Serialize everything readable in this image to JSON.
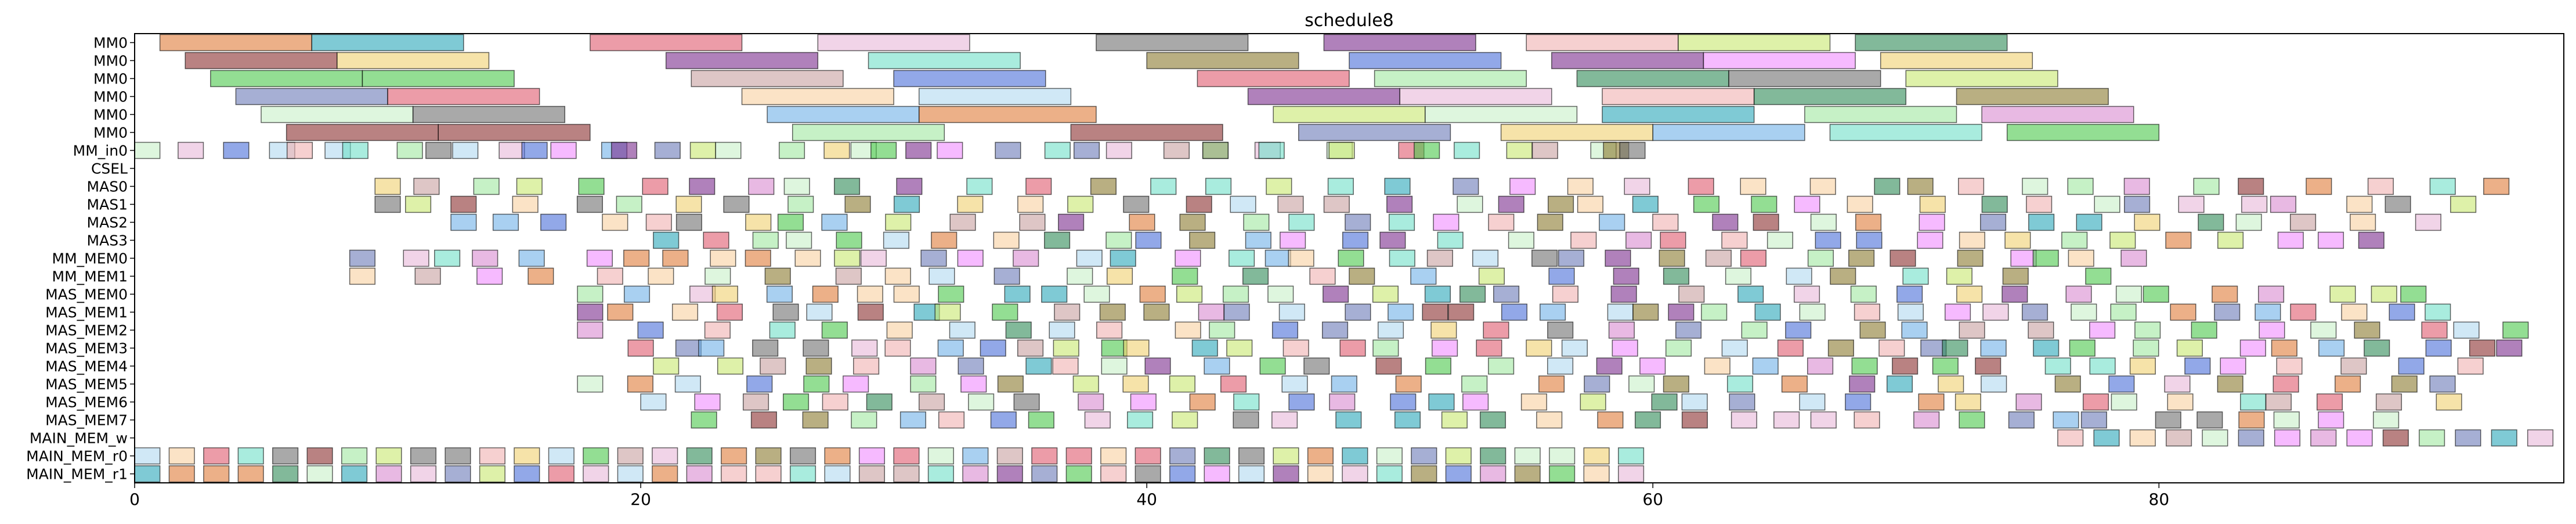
{
  "chart_data": {
    "type": "bar",
    "subtype": "gantt",
    "title": "schedule8",
    "xlabel": "",
    "ylabel": "",
    "xlim": [
      0,
      96
    ],
    "x_ticks": [
      0,
      20,
      40,
      60,
      80
    ],
    "grid": false,
    "legend": "none",
    "rows": [
      "MM0",
      "MM0",
      "MM0",
      "MM0",
      "MM0",
      "MM0",
      "MM_in0",
      "CSEL",
      "MAS0",
      "MAS1",
      "MAS2",
      "MAS3",
      "MM_MEM0",
      "MM_MEM1",
      "MAS_MEM0",
      "MAS_MEM1",
      "MAS_MEM2",
      "MAS_MEM3",
      "MAS_MEM4",
      "MAS_MEM5",
      "MAS_MEM6",
      "MAS_MEM7",
      "MAIN_MEM_w",
      "MAIN_MEM_r0",
      "MAIN_MEM_r1"
    ],
    "palette": [
      "#e07b39",
      "#2aa7b9",
      "#f0d070",
      "#e05a6e",
      "#7b2d8e",
      "#6fe0c8",
      "#e8b8d8",
      "#707070",
      "#8b7a2e",
      "#4a6ed8",
      "#f08cff",
      "#4bc84b",
      "#c8a0a0",
      "#2e8b57",
      "#a0e8a0",
      "#6a7ab8",
      "#f0b0b0",
      "#b0d8f0",
      "#c8e870",
      "#8b2e2e",
      "#f8d0a0",
      "#70b0e8",
      "#c8f0c8",
      "#d88bd0"
    ],
    "tasks": [
      {
        "row": 0,
        "start": 1,
        "end": 7,
        "c": 0
      },
      {
        "row": 0,
        "start": 7,
        "end": 13,
        "c": 1
      },
      {
        "row": 0,
        "start": 18,
        "end": 24,
        "c": 3
      },
      {
        "row": 0,
        "start": 27,
        "end": 33,
        "c": 6
      },
      {
        "row": 0,
        "start": 38,
        "end": 44,
        "c": 7
      },
      {
        "row": 0,
        "start": 47,
        "end": 53,
        "c": 4
      },
      {
        "row": 0,
        "start": 55,
        "end": 61,
        "c": 16
      },
      {
        "row": 0,
        "start": 61,
        "end": 67,
        "c": 18
      },
      {
        "row": 0,
        "start": 68,
        "end": 74,
        "c": 13
      },
      {
        "row": 1,
        "start": 2,
        "end": 8,
        "c": 19
      },
      {
        "row": 1,
        "start": 8,
        "end": 14,
        "c": 2
      },
      {
        "row": 1,
        "start": 21,
        "end": 27,
        "c": 4
      },
      {
        "row": 1,
        "start": 29,
        "end": 35,
        "c": 5
      },
      {
        "row": 1,
        "start": 40,
        "end": 46,
        "c": 8
      },
      {
        "row": 1,
        "start": 48,
        "end": 54,
        "c": 9
      },
      {
        "row": 1,
        "start": 56,
        "end": 62,
        "c": 4
      },
      {
        "row": 1,
        "start": 62,
        "end": 68,
        "c": 10
      },
      {
        "row": 1,
        "start": 69,
        "end": 75,
        "c": 2
      },
      {
        "row": 2,
        "start": 3,
        "end": 9,
        "c": 11
      },
      {
        "row": 2,
        "start": 9,
        "end": 15,
        "c": 11
      },
      {
        "row": 2,
        "start": 22,
        "end": 28,
        "c": 12
      },
      {
        "row": 2,
        "start": 30,
        "end": 36,
        "c": 9
      },
      {
        "row": 2,
        "start": 42,
        "end": 48,
        "c": 3
      },
      {
        "row": 2,
        "start": 49,
        "end": 55,
        "c": 14
      },
      {
        "row": 2,
        "start": 57,
        "end": 63,
        "c": 13
      },
      {
        "row": 2,
        "start": 63,
        "end": 69,
        "c": 7
      },
      {
        "row": 2,
        "start": 70,
        "end": 76,
        "c": 18
      },
      {
        "row": 3,
        "start": 4,
        "end": 10,
        "c": 15
      },
      {
        "row": 3,
        "start": 10,
        "end": 16,
        "c": 3
      },
      {
        "row": 3,
        "start": 24,
        "end": 30,
        "c": 20
      },
      {
        "row": 3,
        "start": 31,
        "end": 37,
        "c": 17
      },
      {
        "row": 3,
        "start": 44,
        "end": 50,
        "c": 4
      },
      {
        "row": 3,
        "start": 50,
        "end": 56,
        "c": 6
      },
      {
        "row": 3,
        "start": 58,
        "end": 64,
        "c": 16
      },
      {
        "row": 3,
        "start": 64,
        "end": 70,
        "c": 13
      },
      {
        "row": 3,
        "start": 72,
        "end": 78,
        "c": 8
      },
      {
        "row": 4,
        "start": 5,
        "end": 11,
        "c": 22
      },
      {
        "row": 4,
        "start": 11,
        "end": 17,
        "c": 7
      },
      {
        "row": 4,
        "start": 25,
        "end": 31,
        "c": 21
      },
      {
        "row": 4,
        "start": 31,
        "end": 38,
        "c": 0
      },
      {
        "row": 4,
        "start": 45,
        "end": 51,
        "c": 18
      },
      {
        "row": 4,
        "start": 51,
        "end": 57,
        "c": 22
      },
      {
        "row": 4,
        "start": 58,
        "end": 64,
        "c": 1
      },
      {
        "row": 4,
        "start": 66,
        "end": 72,
        "c": 14
      },
      {
        "row": 4,
        "start": 73,
        "end": 79,
        "c": 23
      },
      {
        "row": 5,
        "start": 6,
        "end": 12,
        "c": 19
      },
      {
        "row": 5,
        "start": 12,
        "end": 18,
        "c": 19
      },
      {
        "row": 5,
        "start": 26,
        "end": 32,
        "c": 14
      },
      {
        "row": 5,
        "start": 37,
        "end": 43,
        "c": 19
      },
      {
        "row": 5,
        "start": 46,
        "end": 52,
        "c": 15
      },
      {
        "row": 5,
        "start": 54,
        "end": 60,
        "c": 2
      },
      {
        "row": 5,
        "start": 60,
        "end": 66,
        "c": 21
      },
      {
        "row": 5,
        "start": 67,
        "end": 73,
        "c": 5
      },
      {
        "row": 5,
        "start": 74,
        "end": 80,
        "c": 11
      }
    ],
    "dense_rows": [
      {
        "row": 6,
        "count": 45,
        "seed": 3,
        "min": 0,
        "max": 60,
        "gap": 3
      },
      {
        "row": 8,
        "count": 38,
        "seed": 7,
        "min": 9,
        "max": 96,
        "gap": 2
      },
      {
        "row": 9,
        "count": 40,
        "seed": 11,
        "min": 9,
        "max": 93,
        "gap": 2
      },
      {
        "row": 10,
        "count": 38,
        "seed": 13,
        "min": 12,
        "max": 93,
        "gap": 2
      },
      {
        "row": 11,
        "count": 35,
        "seed": 17,
        "min": 20,
        "max": 93,
        "gap": 2
      },
      {
        "row": 12,
        "count": 40,
        "seed": 19,
        "min": 8,
        "max": 80,
        "gap": 2
      },
      {
        "row": 13,
        "count": 30,
        "seed": 23,
        "min": 8,
        "max": 80,
        "gap": 2
      },
      {
        "row": 14,
        "count": 40,
        "seed": 29,
        "min": 17,
        "max": 92,
        "gap": 2
      },
      {
        "row": 15,
        "count": 42,
        "seed": 31,
        "min": 17,
        "max": 92,
        "gap": 2
      },
      {
        "row": 16,
        "count": 36,
        "seed": 37,
        "min": 17,
        "max": 96,
        "gap": 2
      },
      {
        "row": 17,
        "count": 42,
        "seed": 41,
        "min": 19,
        "max": 96,
        "gap": 2
      },
      {
        "row": 18,
        "count": 36,
        "seed": 43,
        "min": 20,
        "max": 94,
        "gap": 2
      },
      {
        "row": 19,
        "count": 36,
        "seed": 47,
        "min": 17,
        "max": 94,
        "gap": 2
      },
      {
        "row": 20,
        "count": 36,
        "seed": 53,
        "min": 20,
        "max": 92,
        "gap": 2
      },
      {
        "row": 21,
        "count": 36,
        "seed": 59,
        "min": 22,
        "max": 92,
        "gap": 2
      },
      {
        "row": 22,
        "count": 14,
        "seed": 61,
        "min": 76,
        "max": 96,
        "gap": 0
      },
      {
        "row": 23,
        "count": 44,
        "seed": 67,
        "min": 0,
        "max": 60,
        "gap": 0
      },
      {
        "row": 24,
        "count": 44,
        "seed": 71,
        "min": 0,
        "max": 60,
        "gap": 0
      }
    ]
  }
}
